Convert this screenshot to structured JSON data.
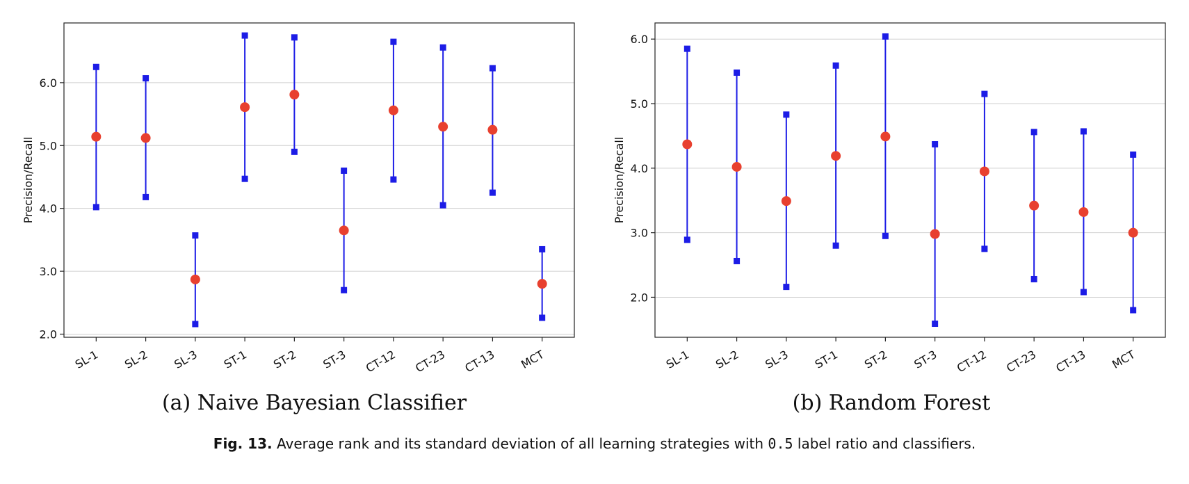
{
  "chart_data": [
    {
      "type": "errorbar",
      "subcaption": "(a) Naive Bayesian Classifier",
      "ylabel": "Precision/Recall",
      "xlabel": "",
      "ylim": [
        1.95,
        6.95
      ],
      "yticks": [
        2.0,
        3.0,
        4.0,
        5.0,
        6.0
      ],
      "ytick_labels": [
        "2.0",
        "3.0",
        "4.0",
        "5.0",
        "6.0"
      ],
      "grid": "horizontal",
      "categories": [
        "SL-1",
        "SL-2",
        "SL-3",
        "ST-1",
        "ST-2",
        "ST-3",
        "CT-12",
        "CT-23",
        "CT-13",
        "MCT"
      ],
      "mean": [
        5.14,
        5.12,
        2.87,
        5.61,
        5.81,
        3.65,
        5.56,
        5.3,
        5.25,
        2.8
      ],
      "upper": [
        6.25,
        6.07,
        3.57,
        6.75,
        6.72,
        4.6,
        6.65,
        6.56,
        6.23,
        3.35
      ],
      "lower": [
        4.02,
        4.18,
        2.16,
        4.47,
        4.9,
        2.7,
        4.46,
        4.05,
        4.25,
        2.26
      ],
      "colors": {
        "mean": "#e8402f",
        "bar": "#1c1ce6"
      }
    },
    {
      "type": "errorbar",
      "subcaption": "(b) Random Forest",
      "ylabel": "Precision/Recall",
      "xlabel": "",
      "ylim": [
        1.38,
        6.25
      ],
      "yticks": [
        2.0,
        3.0,
        4.0,
        5.0,
        6.0
      ],
      "ytick_labels": [
        "2.0",
        "3.0",
        "4.0",
        "5.0",
        "6.0"
      ],
      "grid": "horizontal",
      "categories": [
        "SL-1",
        "SL-2",
        "SL-3",
        "ST-1",
        "ST-2",
        "ST-3",
        "CT-12",
        "CT-23",
        "CT-13",
        "MCT"
      ],
      "mean": [
        4.37,
        4.02,
        3.49,
        4.19,
        4.49,
        2.98,
        3.95,
        3.42,
        3.32,
        3.0
      ],
      "upper": [
        5.85,
        5.48,
        4.83,
        5.59,
        6.04,
        4.37,
        5.15,
        4.56,
        4.57,
        4.21
      ],
      "lower": [
        2.89,
        2.56,
        2.16,
        2.8,
        2.95,
        1.59,
        2.75,
        2.28,
        2.08,
        1.8
      ],
      "colors": {
        "mean": "#e8402f",
        "bar": "#1c1ce6"
      }
    }
  ],
  "caption": {
    "label": "Fig. 13.",
    "text_before": "Average rank and its standard deviation of all learning strategies with",
    "code": "0.5",
    "text_after": "label ratio and classifiers."
  }
}
